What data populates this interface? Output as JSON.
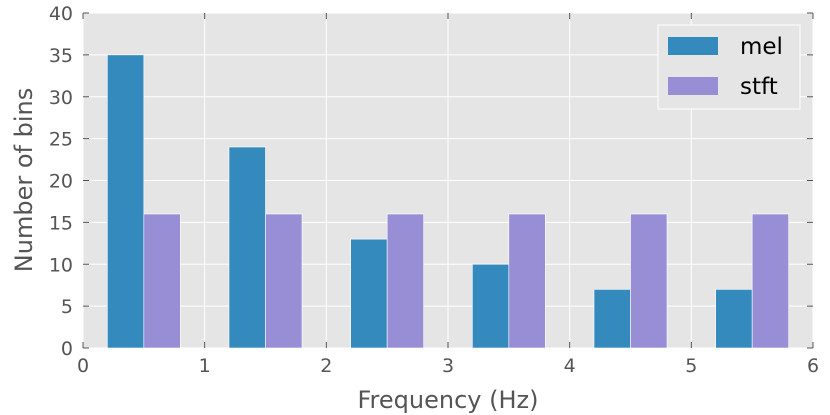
{
  "chart_data": {
    "type": "bar",
    "xlabel": "Frequency (Hz)",
    "ylabel": "Number of bins",
    "xlim": [
      0,
      6
    ],
    "ylim": [
      0,
      40
    ],
    "x_ticks": [
      "0",
      "1",
      "2",
      "3",
      "4",
      "5",
      "6"
    ],
    "y_ticks": [
      "0",
      "5",
      "10",
      "15",
      "20",
      "25",
      "30",
      "35",
      "40"
    ],
    "grid": true,
    "legend_position": "top-right",
    "bin_edges": [
      0.2,
      1.2,
      2.2,
      3.2,
      4.2,
      5.2
    ],
    "bin_width": 0.6,
    "series": [
      {
        "name": "mel",
        "color": "#348ABD",
        "values": [
          35,
          24,
          13,
          10,
          7,
          7
        ]
      },
      {
        "name": "stft",
        "color": "#988ED5",
        "values": [
          16,
          16,
          16,
          16,
          16,
          16
        ]
      }
    ],
    "background_color": "#E5E5E5",
    "grid_color": "#FFFFFF"
  }
}
